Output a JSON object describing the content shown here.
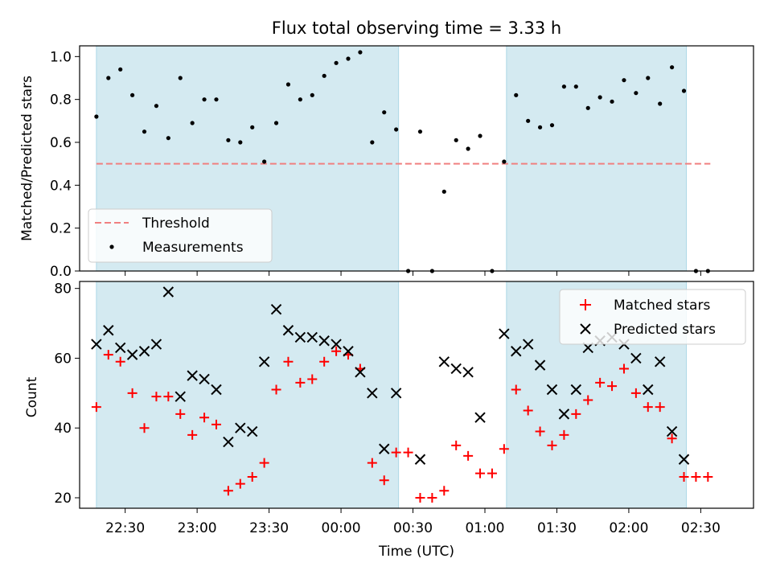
{
  "chart_data": [
    {
      "type": "scatter",
      "title": "Flux total observing time = 3.33 h",
      "ylabel": "Matched/Predicted stars",
      "xlabel": "",
      "ylim": [
        0,
        1.05
      ],
      "yticks": [
        "0.0",
        "0.2",
        "0.4",
        "0.6",
        "0.8",
        "1.0"
      ],
      "legend_position": "lower-left",
      "shaded_intervals": [
        [
          "22:18",
          "00:24"
        ],
        [
          "01:09",
          "02:24"
        ]
      ],
      "shade_color": "#d4eaf1",
      "threshold": {
        "name": "Threshold",
        "value": 0.5,
        "x_range": [
          "22:18",
          "02:34"
        ],
        "color": "#f08080",
        "style": "dashed"
      },
      "series": [
        {
          "name": "Measurements",
          "color": "#000000",
          "marker": "dot",
          "points": [
            [
              "22:18",
              0.72
            ],
            [
              "22:23",
              0.9
            ],
            [
              "22:28",
              0.94
            ],
            [
              "22:33",
              0.82
            ],
            [
              "22:38",
              0.65
            ],
            [
              "22:43",
              0.77
            ],
            [
              "22:48",
              0.62
            ],
            [
              "22:53",
              0.9
            ],
            [
              "22:58",
              0.69
            ],
            [
              "23:03",
              0.8
            ],
            [
              "23:08",
              0.8
            ],
            [
              "23:13",
              0.61
            ],
            [
              "23:18",
              0.6
            ],
            [
              "23:23",
              0.67
            ],
            [
              "23:28",
              0.51
            ],
            [
              "23:33",
              0.69
            ],
            [
              "23:38",
              0.87
            ],
            [
              "23:43",
              0.8
            ],
            [
              "23:48",
              0.82
            ],
            [
              "23:53",
              0.91
            ],
            [
              "23:58",
              0.97
            ],
            [
              "00:03",
              0.99
            ],
            [
              "00:08",
              1.02
            ],
            [
              "00:13",
              0.6
            ],
            [
              "00:18",
              0.74
            ],
            [
              "00:23",
              0.66
            ],
            [
              "00:28",
              0.0
            ],
            [
              "00:33",
              0.65
            ],
            [
              "00:38",
              0.0
            ],
            [
              "00:43",
              0.37
            ],
            [
              "00:48",
              0.61
            ],
            [
              "00:53",
              0.57
            ],
            [
              "00:58",
              0.63
            ],
            [
              "01:03",
              0.0
            ],
            [
              "01:08",
              0.51
            ],
            [
              "01:13",
              0.82
            ],
            [
              "01:18",
              0.7
            ],
            [
              "01:23",
              0.67
            ],
            [
              "01:28",
              0.68
            ],
            [
              "01:33",
              0.86
            ],
            [
              "01:38",
              0.86
            ],
            [
              "01:43",
              0.76
            ],
            [
              "01:48",
              0.81
            ],
            [
              "01:53",
              0.79
            ],
            [
              "01:58",
              0.89
            ],
            [
              "02:03",
              0.83
            ],
            [
              "02:08",
              0.9
            ],
            [
              "02:13",
              0.78
            ],
            [
              "02:18",
              0.95
            ],
            [
              "02:23",
              0.84
            ],
            [
              "02:28",
              0.0
            ],
            [
              "02:33",
              0.0
            ]
          ]
        }
      ]
    },
    {
      "type": "scatter",
      "title": "",
      "ylabel": "Count",
      "xlabel": "Time (UTC)",
      "ylim": [
        17,
        82
      ],
      "yticks": [
        "20",
        "40",
        "60",
        "80"
      ],
      "xlim": [
        "22:11",
        "02:52"
      ],
      "xticks": [
        "22:30",
        "23:00",
        "23:30",
        "00:00",
        "00:30",
        "01:00",
        "01:30",
        "02:00",
        "02:30"
      ],
      "legend_position": "top-right",
      "shaded_intervals": [
        [
          "22:18",
          "00:24"
        ],
        [
          "01:09",
          "02:24"
        ]
      ],
      "shade_color": "#d4eaf1",
      "series": [
        {
          "name": "Matched stars",
          "color": "#ff0000",
          "marker": "plus",
          "points": [
            [
              "22:18",
              46
            ],
            [
              "22:23",
              61
            ],
            [
              "22:28",
              59
            ],
            [
              "22:33",
              50
            ],
            [
              "22:38",
              40
            ],
            [
              "22:43",
              49
            ],
            [
              "22:48",
              49
            ],
            [
              "22:53",
              44
            ],
            [
              "22:58",
              38
            ],
            [
              "23:03",
              43
            ],
            [
              "23:08",
              41
            ],
            [
              "23:13",
              22
            ],
            [
              "23:18",
              24
            ],
            [
              "23:23",
              26
            ],
            [
              "23:28",
              30
            ],
            [
              "23:33",
              51
            ],
            [
              "23:38",
              59
            ],
            [
              "23:43",
              53
            ],
            [
              "23:48",
              54
            ],
            [
              "23:53",
              59
            ],
            [
              "23:58",
              62
            ],
            [
              "00:03",
              61
            ],
            [
              "00:08",
              57
            ],
            [
              "00:13",
              30
            ],
            [
              "00:18",
              25
            ],
            [
              "00:23",
              33
            ],
            [
              "00:28",
              33
            ],
            [
              "00:33",
              20
            ],
            [
              "00:38",
              20
            ],
            [
              "00:43",
              22
            ],
            [
              "00:48",
              35
            ],
            [
              "00:53",
              32
            ],
            [
              "00:58",
              27
            ],
            [
              "01:03",
              27
            ],
            [
              "01:08",
              34
            ],
            [
              "01:13",
              51
            ],
            [
              "01:18",
              45
            ],
            [
              "01:23",
              39
            ],
            [
              "01:28",
              35
            ],
            [
              "01:33",
              38
            ],
            [
              "01:38",
              44
            ],
            [
              "01:43",
              48
            ],
            [
              "01:48",
              53
            ],
            [
              "01:53",
              52
            ],
            [
              "01:58",
              57
            ],
            [
              "02:03",
              50
            ],
            [
              "02:08",
              46
            ],
            [
              "02:13",
              46
            ],
            [
              "02:18",
              37
            ],
            [
              "02:23",
              26
            ],
            [
              "02:28",
              26
            ],
            [
              "02:33",
              26
            ]
          ]
        },
        {
          "name": "Predicted stars",
          "color": "#000000",
          "marker": "x",
          "points": [
            [
              "22:18",
              64
            ],
            [
              "22:23",
              68
            ],
            [
              "22:28",
              63
            ],
            [
              "22:33",
              61
            ],
            [
              "22:38",
              62
            ],
            [
              "22:43",
              64
            ],
            [
              "22:48",
              79
            ],
            [
              "22:53",
              49
            ],
            [
              "22:58",
              55
            ],
            [
              "23:03",
              54
            ],
            [
              "23:08",
              51
            ],
            [
              "23:13",
              36
            ],
            [
              "23:18",
              40
            ],
            [
              "23:23",
              39
            ],
            [
              "23:28",
              59
            ],
            [
              "23:33",
              74
            ],
            [
              "23:38",
              68
            ],
            [
              "23:43",
              66
            ],
            [
              "23:48",
              66
            ],
            [
              "23:53",
              65
            ],
            [
              "23:58",
              64
            ],
            [
              "00:03",
              62
            ],
            [
              "00:08",
              56
            ],
            [
              "00:13",
              50
            ],
            [
              "00:18",
              34
            ],
            [
              "00:23",
              50
            ],
            [
              "00:33",
              31
            ],
            [
              "00:43",
              59
            ],
            [
              "00:48",
              57
            ],
            [
              "00:53",
              56
            ],
            [
              "00:58",
              43
            ],
            [
              "01:08",
              67
            ],
            [
              "01:13",
              62
            ],
            [
              "01:18",
              64
            ],
            [
              "01:23",
              58
            ],
            [
              "01:28",
              51
            ],
            [
              "01:33",
              44
            ],
            [
              "01:38",
              51
            ],
            [
              "01:43",
              63
            ],
            [
              "01:48",
              65
            ],
            [
              "01:53",
              66
            ],
            [
              "01:58",
              64
            ],
            [
              "02:03",
              60
            ],
            [
              "02:08",
              51
            ],
            [
              "02:13",
              59
            ],
            [
              "02:18",
              39
            ],
            [
              "02:23",
              31
            ]
          ]
        }
      ]
    }
  ]
}
